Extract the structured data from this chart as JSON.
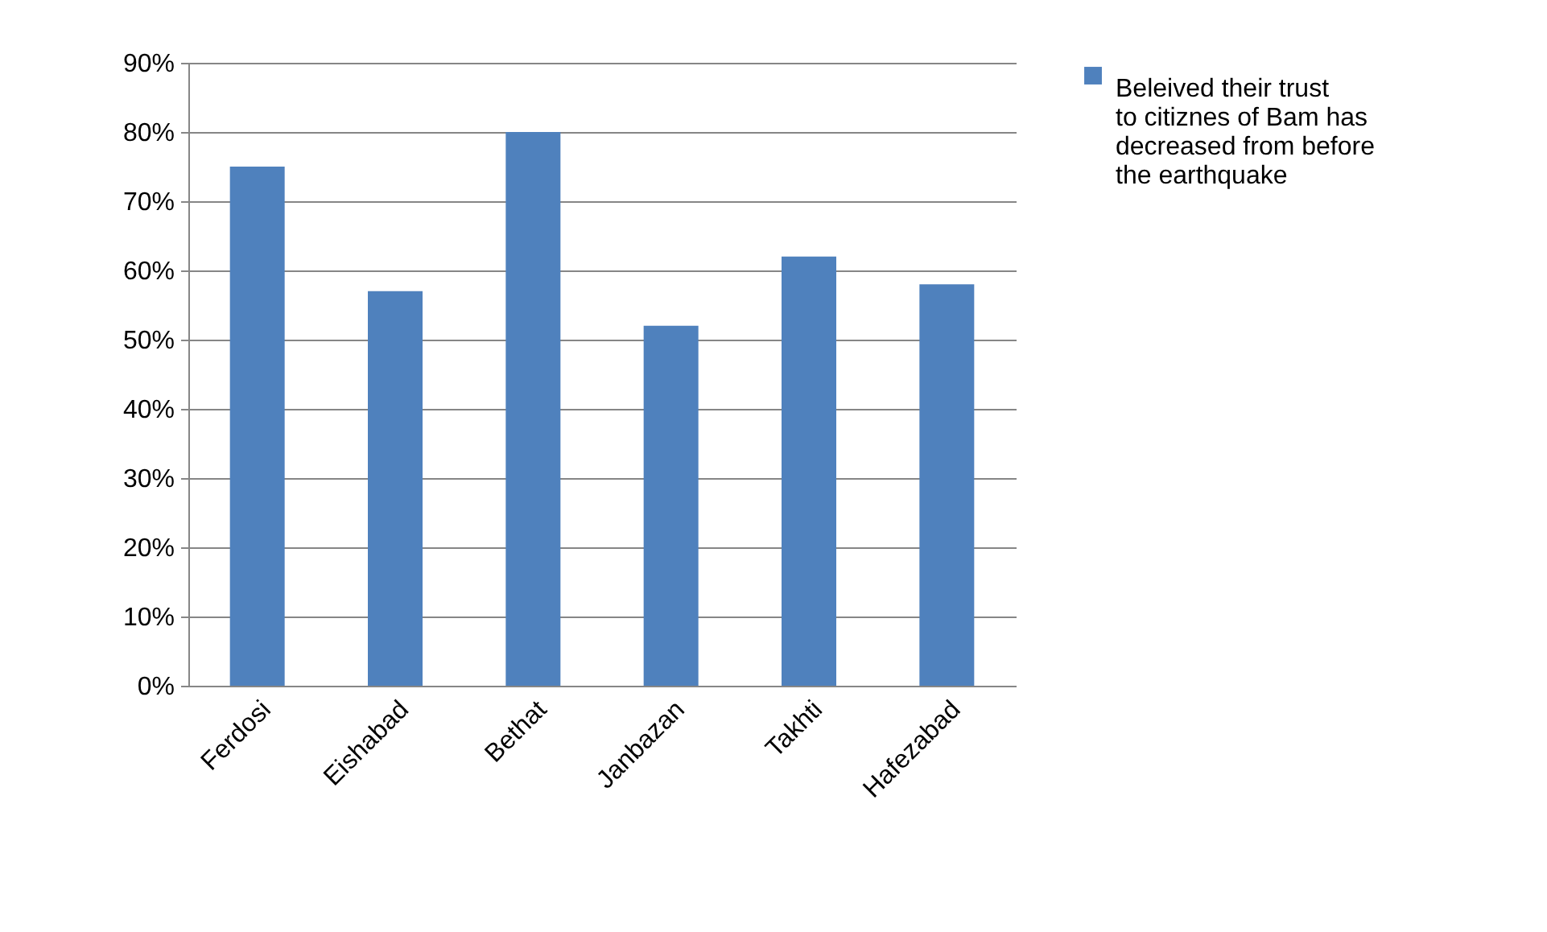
{
  "chart_data": {
    "type": "bar",
    "categories": [
      "Ferdosi",
      "Eishabad",
      "Bethat",
      "Janbazan",
      "Takhti",
      "Hafezabad"
    ],
    "series": [
      {
        "name": "Beleived their trust to citiznes of Bam has decreased from before the earthquake",
        "color": "#4f81bd",
        "values": [
          75,
          57,
          80,
          52,
          62,
          58
        ]
      }
    ],
    "ylim": [
      0,
      90
    ],
    "yticks": [
      {
        "value": 0,
        "label": "0%"
      },
      {
        "value": 10,
        "label": "10%"
      },
      {
        "value": 20,
        "label": "20%"
      },
      {
        "value": 30,
        "label": "30%"
      },
      {
        "value": 40,
        "label": "40%"
      },
      {
        "value": 50,
        "label": "50%"
      },
      {
        "value": 60,
        "label": "60%"
      },
      {
        "value": 70,
        "label": "70%"
      },
      {
        "value": 80,
        "label": "80%"
      },
      {
        "value": 90,
        "label": "90%"
      }
    ],
    "grid": "y",
    "legend": "right"
  }
}
